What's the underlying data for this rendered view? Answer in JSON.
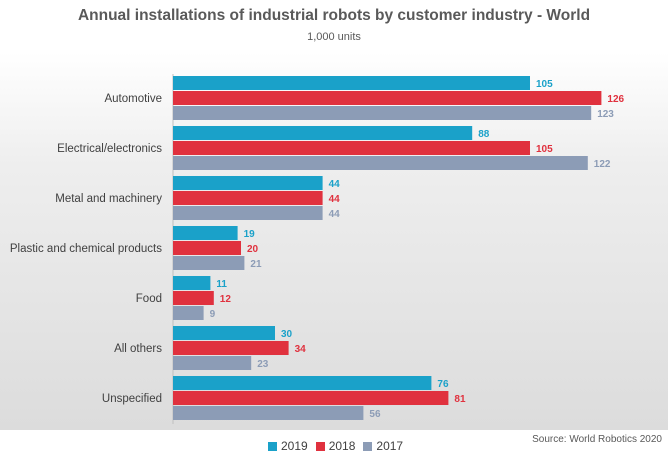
{
  "chart_data": {
    "type": "bar",
    "orientation": "horizontal",
    "title": "Annual installations of industrial robots by customer industry - World",
    "subtitle": "1,000 units",
    "source": "Source: World Robotics 2020",
    "categories": [
      "Automotive",
      "Electrical/electronics",
      "Metal and machinery",
      "Plastic and chemical products",
      "Food",
      "All others",
      "Unspecified"
    ],
    "series": [
      {
        "name": "2019",
        "color": "#1aa1c9",
        "values": [
          105,
          88,
          44,
          19,
          11,
          30,
          76
        ]
      },
      {
        "name": "2018",
        "color": "#e0313e",
        "values": [
          126,
          105,
          44,
          20,
          12,
          34,
          81
        ]
      },
      {
        "name": "2017",
        "color": "#8c9cb6",
        "values": [
          123,
          122,
          44,
          21,
          9,
          23,
          56
        ]
      }
    ],
    "legend": "bottom-center",
    "grid": false
  }
}
